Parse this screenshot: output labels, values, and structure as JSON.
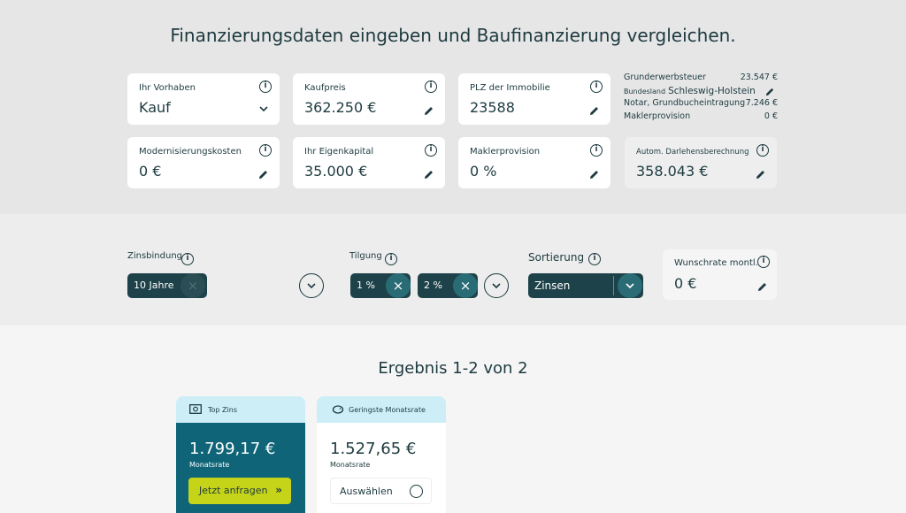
{
  "headline": "Finanzierungsdaten eingeben und Baufinanzierung vergleichen.",
  "cards": {
    "vorhaben": {
      "label": "Ihr Vorhaben",
      "value": "Kauf"
    },
    "kaufpreis": {
      "label": "Kaufpreis",
      "value": "362.250 €"
    },
    "plz": {
      "label": "PLZ der Immobilie",
      "value": "23588"
    },
    "modernisierung": {
      "label": "Modernisierungskosten",
      "value": "0 €"
    },
    "eigenkapital": {
      "label": "Ihr Eigenkapital",
      "value": "35.000 €"
    },
    "maklerprovision": {
      "label": "Maklerprovision",
      "value": "0 %"
    },
    "darlehen": {
      "label": "Autom. Darlehensberechnung",
      "value": "358.043 €"
    }
  },
  "summary": {
    "grunderwerbsteuer_label": "Grunderwerbsteuer",
    "grunderwerbsteuer_value": "23.547 €",
    "bundesland_label": "Bundesland",
    "bundesland_value": "Schleswig-Holstein",
    "notar_label": "Notar, Grundbucheintragung",
    "notar_value": "7.246 €",
    "makler_label": "Maklerprovision",
    "makler_value": "0 €"
  },
  "filters": {
    "zinsbindung_label": "Zinsbindung",
    "zinsbindung_chip": "10 Jahre",
    "tilgung_label": "Tilgung",
    "tilgung_chips": [
      "1 %",
      "2 %"
    ],
    "sortierung_label": "Sortierung",
    "sortierung_value": "Zinsen",
    "wunschrate_label": "Wunschrate montl.",
    "wunschrate_value": "0 €"
  },
  "results": {
    "title": "Ergebnis 1-2 von 2",
    "items": [
      {
        "badge": "Top Zins",
        "amount": "1.799,17 €",
        "sub": "Monatsrate",
        "action": "Jetzt anfragen",
        "action_icon": "»"
      },
      {
        "badge": "Geringste Monatsrate",
        "amount": "1.527,65 €",
        "sub": "Monatsrate",
        "action": "Auswählen"
      }
    ]
  },
  "colors": {
    "dark": "#1e4249",
    "teal": "#2a6c75",
    "result_bg": "#0f6577",
    "cta": "#c6d419",
    "badge_bg": "#cdeef7"
  },
  "icons": {
    "info": "i",
    "close": "×"
  }
}
